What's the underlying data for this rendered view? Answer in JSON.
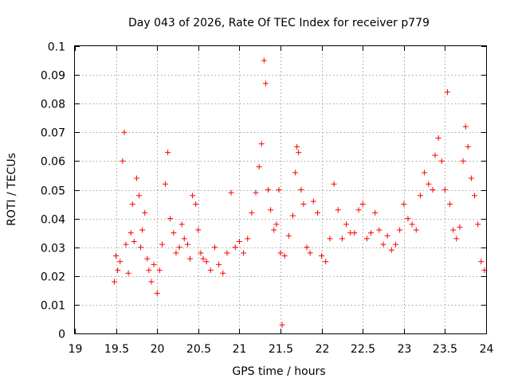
{
  "chart_data": {
    "type": "scatter",
    "title": "Day 043 of 2026, Rate Of TEC Index for receiver p779",
    "xlabel": "GPS time / hours",
    "ylabel": "ROTI / TECUs",
    "xlim": [
      19,
      24
    ],
    "ylim": [
      0,
      0.1
    ],
    "x_ticks": [
      "19",
      "19.5",
      "20",
      "20.5",
      "21",
      "21.5",
      "22",
      "22.5",
      "23",
      "23.5",
      "24"
    ],
    "y_ticks": [
      "0",
      "0.01",
      "0.02",
      "0.03",
      "0.04",
      "0.05",
      "0.06",
      "0.07",
      "0.08",
      "0.09",
      "0.1"
    ],
    "grid": true,
    "marker": "+",
    "color": "#ff0000",
    "series": [
      {
        "name": "ROTI",
        "x": [
          19.48,
          19.5,
          19.52,
          19.55,
          19.58,
          19.6,
          19.62,
          19.65,
          19.68,
          19.7,
          19.72,
          19.75,
          19.78,
          19.8,
          19.82,
          19.85,
          19.88,
          19.9,
          19.93,
          19.96,
          20.0,
          20.03,
          20.06,
          20.1,
          20.13,
          20.16,
          20.2,
          20.23,
          20.27,
          20.3,
          20.33,
          20.37,
          20.4,
          20.43,
          20.47,
          20.5,
          20.53,
          20.56,
          20.6,
          20.65,
          20.7,
          20.75,
          20.8,
          20.85,
          20.9,
          20.95,
          21.0,
          21.05,
          21.1,
          21.15,
          21.2,
          21.24,
          21.27,
          21.3,
          21.32,
          21.35,
          21.38,
          21.42,
          21.45,
          21.48,
          21.5,
          21.52,
          21.55,
          21.6,
          21.65,
          21.68,
          21.7,
          21.72,
          21.75,
          21.78,
          21.82,
          21.86,
          21.9,
          21.95,
          22.0,
          22.05,
          22.1,
          22.15,
          22.2,
          22.25,
          22.3,
          22.35,
          22.4,
          22.45,
          22.5,
          22.55,
          22.6,
          22.65,
          22.7,
          22.75,
          22.8,
          22.85,
          22.9,
          22.95,
          23.0,
          23.05,
          23.1,
          23.15,
          23.2,
          23.25,
          23.3,
          23.35,
          23.38,
          23.42,
          23.46,
          23.5,
          23.53,
          23.56,
          23.6,
          23.64,
          23.68,
          23.72,
          23.75,
          23.78,
          23.82,
          23.86,
          23.9,
          23.94,
          23.98
        ],
        "y": [
          0.018,
          0.027,
          0.022,
          0.025,
          0.06,
          0.07,
          0.031,
          0.021,
          0.035,
          0.045,
          0.032,
          0.054,
          0.048,
          0.03,
          0.036,
          0.042,
          0.026,
          0.022,
          0.018,
          0.024,
          0.014,
          0.022,
          0.031,
          0.052,
          0.063,
          0.04,
          0.035,
          0.028,
          0.03,
          0.038,
          0.033,
          0.031,
          0.026,
          0.048,
          0.045,
          0.036,
          0.028,
          0.026,
          0.025,
          0.022,
          0.03,
          0.024,
          0.021,
          0.028,
          0.049,
          0.03,
          0.032,
          0.028,
          0.033,
          0.042,
          0.049,
          0.058,
          0.066,
          0.095,
          0.087,
          0.05,
          0.043,
          0.036,
          0.038,
          0.05,
          0.028,
          0.003,
          0.027,
          0.034,
          0.041,
          0.056,
          0.065,
          0.063,
          0.05,
          0.045,
          0.03,
          0.028,
          0.046,
          0.042,
          0.027,
          0.025,
          0.033,
          0.052,
          0.043,
          0.033,
          0.038,
          0.035,
          0.035,
          0.043,
          0.045,
          0.033,
          0.035,
          0.042,
          0.036,
          0.031,
          0.034,
          0.029,
          0.031,
          0.036,
          0.045,
          0.04,
          0.038,
          0.036,
          0.048,
          0.056,
          0.052,
          0.05,
          0.062,
          0.068,
          0.06,
          0.05,
          0.084,
          0.045,
          0.036,
          0.033,
          0.037,
          0.06,
          0.072,
          0.065,
          0.054,
          0.048,
          0.038,
          0.025,
          0.022
        ]
      }
    ]
  }
}
